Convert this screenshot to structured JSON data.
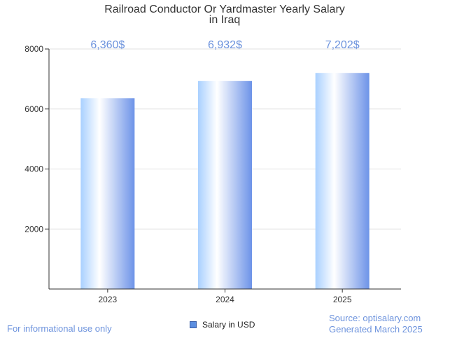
{
  "chart_data": {
    "type": "bar",
    "title": [
      "Railroad Conductor Or Yardmaster Yearly Salary",
      "in Iraq"
    ],
    "categories": [
      "2023",
      "2024",
      "2025"
    ],
    "series": [
      {
        "name": "Salary in USD",
        "values": [
          6360,
          6932,
          7202
        ]
      }
    ],
    "data_labels": [
      "6,360$",
      "6,932$",
      "7,202$"
    ],
    "ylim": [
      0,
      8000
    ],
    "yticks": [
      2000,
      4000,
      6000,
      8000
    ],
    "grid": true,
    "legend_position": "bottom-center",
    "colors": {
      "bar_light": "#ffffff",
      "bar_mid": "#a9d0ff",
      "bar_dark": "#6d93e8",
      "label": "#6d93dd"
    }
  },
  "footer": {
    "disclaimer": "For informational use only",
    "source": "Source: optisalary.com",
    "generated": "Generated March 2025"
  }
}
